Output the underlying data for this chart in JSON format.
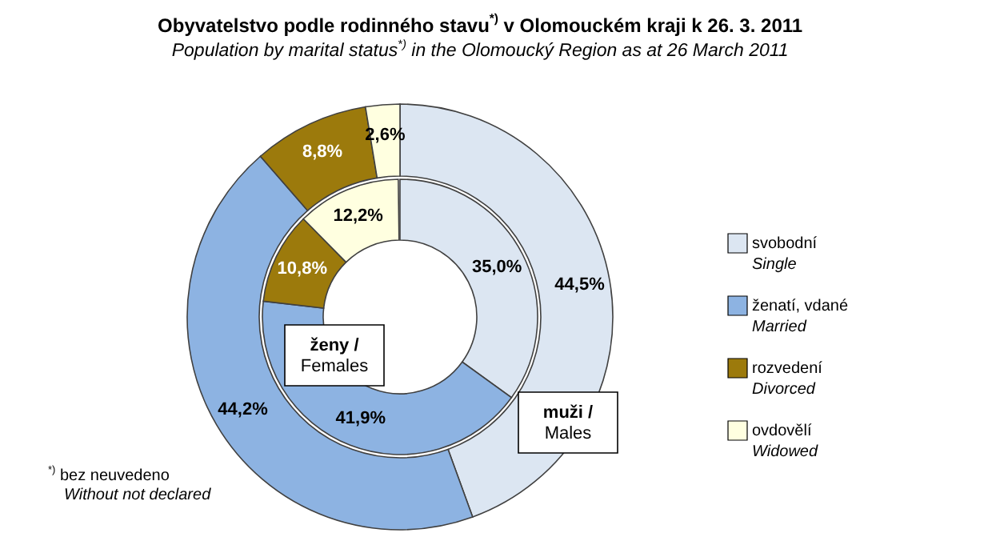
{
  "chart_data": {
    "type": "donut",
    "title": "Obyvatelstvo podle rodinného stavu$^{*)}$ v Olomouckém kraji k 26. 3. 2011",
    "subtitle": "Population by marital status$^{*)}$ in the Olomoucký Region as at 26 March 2011",
    "categories": [
      "svobodní\nSingle",
      "ženatí, vdané\nMarried",
      "rozvedení\nDivorced",
      "ovdovělí\nWidowed"
    ],
    "colors": [
      "#dce6f2",
      "#8db3e2",
      "#9c7a0c",
      "#ffffe0"
    ],
    "series": [
      {
        "name": "muži /\nMales",
        "values": [
          44.5,
          44.2,
          8.8,
          2.6
        ],
        "value_labels": [
          "44,5%",
          "44,2%",
          "8,8%",
          "2,6%"
        ]
      },
      {
        "name": "ženy /\nFemales",
        "values": [
          35.0,
          41.9,
          10.8,
          12.2
        ],
        "value_labels": [
          "35,0%",
          "41,9%",
          "10,8%",
          "12,2%"
        ]
      }
    ],
    "legend": "right",
    "annotations": [
      "$^{*)}$ bez neuvedeno\nWithout not declared"
    ]
  }
}
